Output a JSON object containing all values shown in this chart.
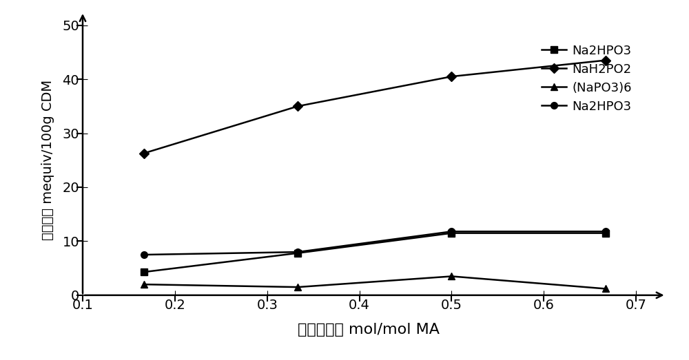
{
  "series": [
    {
      "label": "Na2HPO3",
      "x": [
        0.1667,
        0.3333,
        0.5,
        0.6667
      ],
      "y": [
        4.3,
        7.8,
        11.5,
        11.5
      ],
      "marker": "s",
      "color": "#000000",
      "linewidth": 1.8,
      "markersize": 7
    },
    {
      "label": "NaH2PO2",
      "x": [
        0.1667,
        0.3333,
        0.5,
        0.6667
      ],
      "y": [
        26.3,
        35.0,
        40.5,
        43.5
      ],
      "marker": "D",
      "color": "#000000",
      "linewidth": 1.8,
      "markersize": 7
    },
    {
      "label": "(NaPO3)6",
      "x": [
        0.1667,
        0.3333,
        0.5,
        0.6667
      ],
      "y": [
        2.0,
        1.5,
        3.5,
        1.2
      ],
      "marker": "^",
      "color": "#000000",
      "linewidth": 1.8,
      "markersize": 7
    },
    {
      "label": "Na2HPO3",
      "x": [
        0.1667,
        0.3333,
        0.5,
        0.6667
      ],
      "y": [
        7.5,
        8.0,
        11.8,
        11.8
      ],
      "marker": "o",
      "color": "#000000",
      "linewidth": 1.8,
      "markersize": 7
    }
  ],
  "xlabel": "呲化剂用量 mol/mol MA",
  "ylabel": "双键含量 mequiv/100g CDM",
  "xlim": [
    0.1,
    0.72
  ],
  "ylim": [
    0,
    50
  ],
  "xticks": [
    0.1,
    0.2,
    0.3,
    0.4,
    0.5,
    0.6,
    0.7
  ],
  "yticks": [
    0,
    10,
    20,
    30,
    40,
    50
  ],
  "xlabel_fontsize": 16,
  "ylabel_fontsize": 14,
  "tick_fontsize": 14,
  "legend_fontsize": 13,
  "background_color": "#ffffff"
}
